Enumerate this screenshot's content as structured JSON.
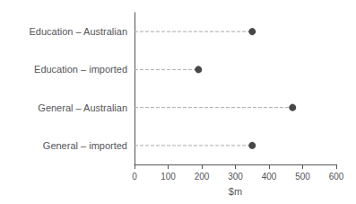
{
  "chart_data": {
    "type": "dot",
    "orientation": "horizontal",
    "categories": [
      "Education – Australian",
      "Education – imported",
      "General – Australian",
      "General – imported"
    ],
    "values": [
      350,
      190,
      470,
      350
    ],
    "xlabel": "$m",
    "xlim": [
      0,
      600
    ],
    "xticks": [
      0,
      100,
      200,
      300,
      400,
      500,
      600
    ],
    "color": "#1a1a1a",
    "line_style": "dashed",
    "grid": false
  }
}
